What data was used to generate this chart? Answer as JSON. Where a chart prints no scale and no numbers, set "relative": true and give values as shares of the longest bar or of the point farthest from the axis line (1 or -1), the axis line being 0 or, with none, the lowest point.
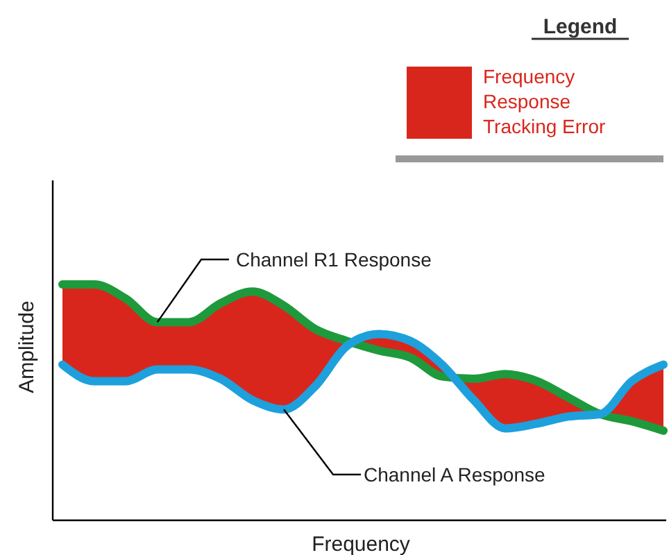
{
  "chart_data": {
    "type": "line",
    "relative": true,
    "xlabel": "Frequency",
    "ylabel": "Amplitude",
    "legend_title": "Legend",
    "legend": "top right",
    "grid": false,
    "line_style": "solid",
    "marker": "none",
    "annotations": [
      "Frequency Response Tracking Error"
    ],
    "categories": [
      null,
      null,
      null,
      null,
      null,
      null,
      null,
      null,
      null,
      null,
      null,
      null,
      null,
      null,
      null,
      null,
      null,
      null,
      null,
      null
    ],
    "series": [
      {
        "type": "line",
        "name": "Channel R1 Response",
        "color": "#1e9a3c",
        "values": [
          1,
          1,
          0.94,
          0.84,
          0.84,
          0.92,
          0.97,
          0.91,
          0.81,
          0.76,
          0.72,
          0.69,
          0.61,
          0.6,
          0.62,
          0.59,
          0.52,
          0.45,
          0.42,
          0.38
        ],
        "lower": [
          0.66,
          0.59,
          0.59,
          0.64,
          0.64,
          0.6,
          0.51,
          0.47,
          0.57,
          0.74,
          0.79,
          0.76,
          0.66,
          0.51,
          0.39,
          0.41,
          0.44,
          0.45,
          0.59,
          0.66
        ],
        "upper": [
          1,
          1,
          0.94,
          0.84,
          0.84,
          0.92,
          0.97,
          0.91,
          0.81,
          0.76,
          0.72,
          0.69,
          0.61,
          0.6,
          0.62,
          0.59,
          0.52,
          0.45,
          0.42,
          0.38
        ]
      },
      {
        "type": "line",
        "name": "Channel A Response",
        "color": "#1ea0dc",
        "values": [
          0.66,
          0.59,
          0.59,
          0.64,
          0.64,
          0.6,
          0.51,
          0.47,
          0.57,
          0.74,
          0.79,
          0.76,
          0.66,
          0.51,
          0.39,
          0.41,
          0.44,
          0.45,
          0.59,
          0.66
        ]
      }
    ]
  }
}
